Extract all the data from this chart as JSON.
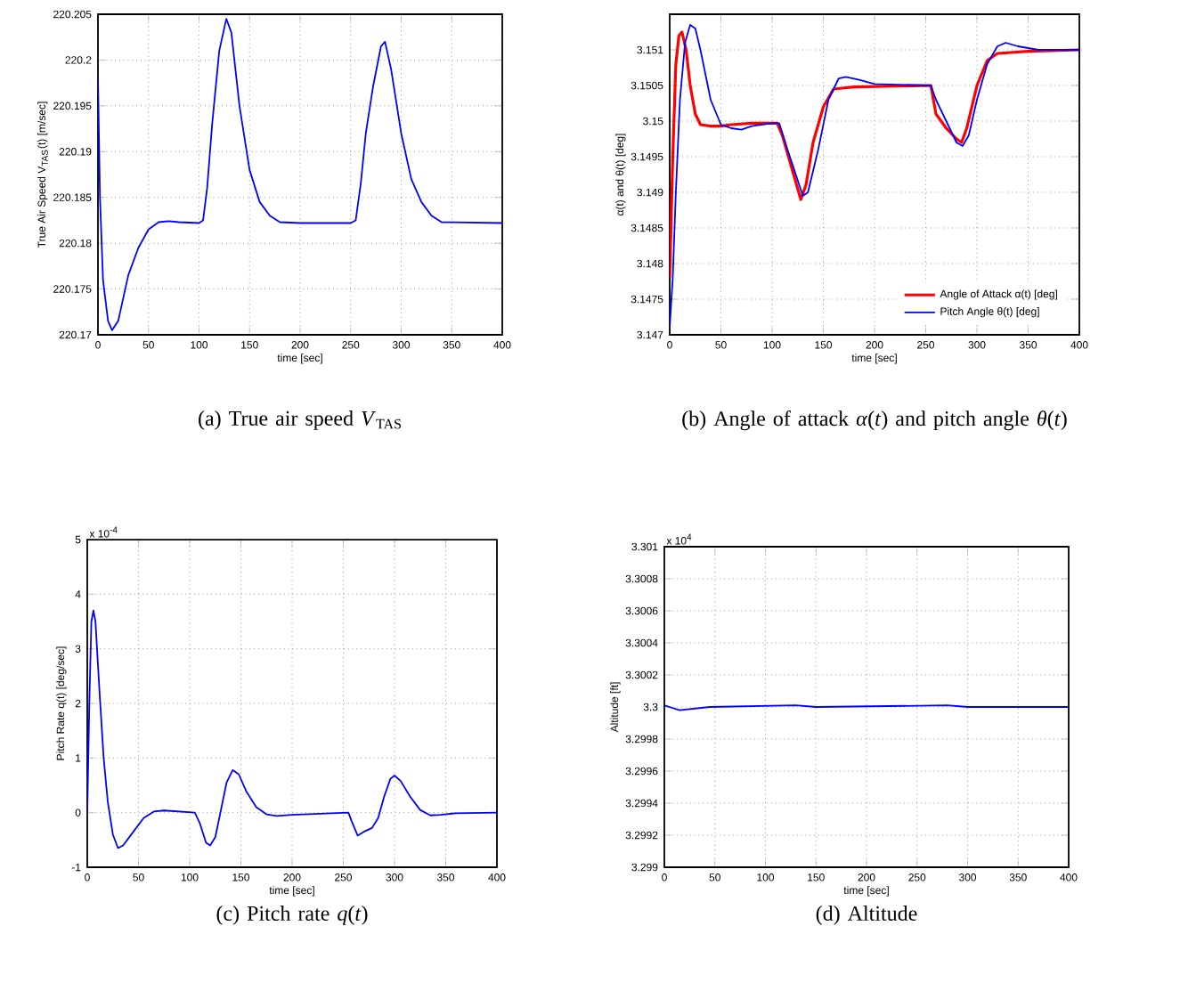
{
  "chart_data": [
    {
      "type": "line",
      "title": "(a) True air speed *V*$_{TAS}$",
      "xlabel": "time [sec]",
      "ylabel": "True Air Speed  V$_{TAS}$(t)  [m/sec]",
      "grid": true,
      "xlim": [
        0,
        400
      ],
      "xticks": [
        0,
        50,
        100,
        150,
        200,
        250,
        300,
        350,
        400
      ],
      "ylim": [
        220.17,
        220.205
      ],
      "yticks": [
        220.17,
        220.175,
        220.18,
        220.185,
        220.19,
        220.195,
        220.2,
        220.205
      ],
      "series": [
        {
          "color": "#0000ff",
          "x": [
            0,
            2,
            5,
            10,
            14,
            20,
            25,
            30,
            40,
            50,
            60,
            70,
            80,
            100,
            104,
            108,
            113,
            120,
            127,
            132,
            140,
            150,
            160,
            170,
            180,
            200,
            250,
            255,
            260,
            265,
            272,
            280,
            284,
            290,
            300,
            310,
            320,
            330,
            340,
            400
          ],
          "values": [
            220.198,
            220.185,
            220.176,
            220.1715,
            220.1705,
            220.1715,
            220.174,
            220.1765,
            220.1795,
            220.1815,
            220.1823,
            220.1824,
            220.1823,
            220.1822,
            220.1825,
            220.186,
            220.193,
            220.201,
            220.2045,
            220.203,
            220.195,
            220.188,
            220.1845,
            220.183,
            220.1823,
            220.1822,
            220.1822,
            220.1825,
            220.1865,
            220.192,
            220.197,
            220.2015,
            220.202,
            220.199,
            220.192,
            220.187,
            220.1845,
            220.183,
            220.1823,
            220.1822
          ]
        }
      ]
    },
    {
      "type": "line",
      "title": "(b) Angle of attack *α*(*t*) and pitch angle *θ*(*t*)",
      "xlabel": "time [sec]",
      "ylabel": "α(t) and θ(t)  [deg]",
      "grid": true,
      "legend": "bottom right",
      "xlim": [
        0,
        400
      ],
      "xticks": [
        0,
        50,
        100,
        150,
        200,
        250,
        300,
        350,
        400
      ],
      "ylim": [
        3.147,
        3.1515
      ],
      "yticks": [
        3.147,
        3.1475,
        3.148,
        3.1485,
        3.149,
        3.1495,
        3.15,
        3.1505,
        3.151
      ],
      "series": [
        {
          "name": "Angle of Attack α(t) [deg]",
          "color": "#ff0000",
          "x": [
            0,
            3,
            6,
            9,
            12,
            16,
            20,
            25,
            30,
            40,
            50,
            60,
            80,
            105,
            110,
            118,
            125,
            128,
            133,
            140,
            150,
            160,
            180,
            255,
            260,
            270,
            280,
            285,
            290,
            300,
            310,
            320,
            350,
            400
          ],
          "values": [
            3.1478,
            3.1495,
            3.1508,
            3.1512,
            3.15125,
            3.151,
            3.1505,
            3.1501,
            3.14995,
            3.14993,
            3.14993,
            3.14995,
            3.14997,
            3.14997,
            3.1498,
            3.1494,
            3.14905,
            3.1489,
            3.1491,
            3.1497,
            3.1502,
            3.15045,
            3.15048,
            3.1505,
            3.1501,
            3.1499,
            3.14975,
            3.1497,
            3.1499,
            3.1505,
            3.15085,
            3.15095,
            3.15098,
            3.151
          ]
        },
        {
          "name": "Pitch Angle θ(t) [deg]",
          "color": "#0000ff",
          "x": [
            0,
            3,
            6,
            10,
            15,
            20,
            25,
            30,
            40,
            50,
            60,
            70,
            80,
            100,
            107,
            115,
            122,
            130,
            135,
            145,
            155,
            165,
            172,
            185,
            200,
            255,
            260,
            270,
            280,
            286,
            292,
            300,
            310,
            320,
            328,
            340,
            360,
            400
          ],
          "values": [
            3.1471,
            3.1478,
            3.149,
            3.1503,
            3.1511,
            3.15135,
            3.1513,
            3.151,
            3.1503,
            3.14995,
            3.1499,
            3.14988,
            3.14993,
            3.14997,
            3.14997,
            3.1496,
            3.1493,
            3.14895,
            3.149,
            3.1496,
            3.1503,
            3.1506,
            3.15062,
            3.15058,
            3.15052,
            3.1505,
            3.1503,
            3.15,
            3.1497,
            3.14965,
            3.1498,
            3.1503,
            3.1508,
            3.15105,
            3.1511,
            3.15105,
            3.151,
            3.151
          ]
        }
      ]
    },
    {
      "type": "line",
      "title": "(c) Pitch rate *q*(*t*)",
      "xlabel": "time [sec]",
      "ylabel": "Pitch Rate  q(t)  [deg/sec]",
      "annotations": [
        "x 10$^{-4}$"
      ],
      "grid": true,
      "xlim": [
        0,
        400
      ],
      "xticks": [
        0,
        50,
        100,
        150,
        200,
        250,
        300,
        350,
        400
      ],
      "ylim": [
        -1,
        5
      ],
      "yticks": [
        -1,
        0,
        1,
        2,
        3,
        4,
        5
      ],
      "series": [
        {
          "color": "#0000ff",
          "x": [
            0,
            2,
            4,
            6,
            8,
            12,
            16,
            20,
            25,
            30,
            35,
            45,
            55,
            65,
            75,
            90,
            105,
            110,
            116,
            120,
            125,
            130,
            136,
            142,
            148,
            155,
            165,
            175,
            185,
            200,
            255,
            258,
            264,
            270,
            278,
            284,
            290,
            296,
            300,
            306,
            315,
            325,
            335,
            345,
            360,
            400
          ],
          "values": [
            0,
            2.0,
            3.5,
            3.7,
            3.5,
            2.2,
            1.0,
            0.2,
            -0.4,
            -0.65,
            -0.6,
            -0.35,
            -0.1,
            0.02,
            0.04,
            0.02,
            0,
            -0.2,
            -0.55,
            -0.6,
            -0.45,
            0,
            0.55,
            0.78,
            0.7,
            0.4,
            0.1,
            -0.03,
            -0.06,
            -0.04,
            0,
            -0.15,
            -0.42,
            -0.35,
            -0.28,
            -0.1,
            0.3,
            0.62,
            0.68,
            0.58,
            0.3,
            0.05,
            -0.05,
            -0.04,
            -0.01,
            0
          ]
        }
      ]
    },
    {
      "type": "line",
      "title": "(d) Altitude",
      "xlabel": "time [sec]",
      "ylabel": "Altitude [ft]",
      "annotations": [
        "x 10$^{4}$"
      ],
      "grid": true,
      "xlim": [
        0,
        400
      ],
      "xticks": [
        0,
        50,
        100,
        150,
        200,
        250,
        300,
        350,
        400
      ],
      "ylim": [
        3.299,
        3.301
      ],
      "yticks": [
        3.299,
        3.2992,
        3.2994,
        3.2996,
        3.2998,
        3.3,
        3.3002,
        3.3004,
        3.3006,
        3.3008,
        3.301
      ],
      "series": [
        {
          "color": "#0000ff",
          "x": [
            0,
            5,
            15,
            30,
            45,
            130,
            150,
            280,
            300,
            400
          ],
          "values": [
            3.30001,
            3.3,
            3.29998,
            3.29999,
            3.3,
            3.30001,
            3.3,
            3.30001,
            3.3,
            3.3
          ]
        }
      ]
    }
  ]
}
